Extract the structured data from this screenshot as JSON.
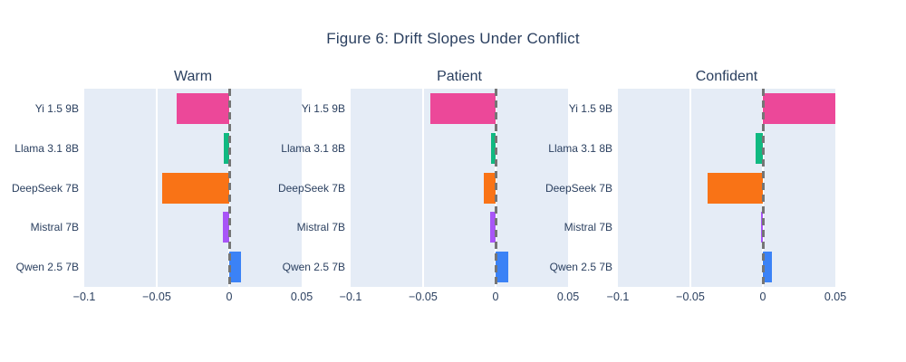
{
  "figure": {
    "title": "Figure 6: Drift Slopes Under Conflict"
  },
  "chart_data": {
    "type": "bar",
    "orientation": "horizontal",
    "title": "Figure 6: Drift Slopes Under Conflict",
    "categories": [
      "Yi 1.5 9B",
      "Llama 3.1 8B",
      "DeepSeek 7B",
      "Mistral 7B",
      "Qwen 2.5 7B"
    ],
    "bar_colors": [
      "#ec4899",
      "#10b981",
      "#f97316",
      "#a855f7",
      "#3b82f6"
    ],
    "subplots": [
      {
        "title": "Warm",
        "values": [
          -0.036,
          -0.0035,
          -0.046,
          -0.0045,
          0.008
        ]
      },
      {
        "title": "Patient",
        "values": [
          -0.045,
          -0.003,
          -0.008,
          -0.004,
          0.009
        ]
      },
      {
        "title": "Confident",
        "values": [
          0.05,
          -0.005,
          -0.038,
          -0.001,
          0.006
        ]
      }
    ],
    "xlim": [
      -0.1,
      0.05
    ],
    "x_ticks": [
      {
        "value": -0.1,
        "label": "−0.1"
      },
      {
        "value": -0.05,
        "label": "−0.05"
      },
      {
        "value": 0,
        "label": "0"
      },
      {
        "value": 0.05,
        "label": "0.05"
      }
    ],
    "grid": true,
    "legend": "none",
    "zero_line": {
      "style": "dashed",
      "color": "#757575"
    }
  },
  "style": {
    "paper_bg": "#ffffff",
    "plot_bg": "#e5ecf6",
    "grid_color": "#ffffff",
    "text_color": "#2a3f5f"
  }
}
